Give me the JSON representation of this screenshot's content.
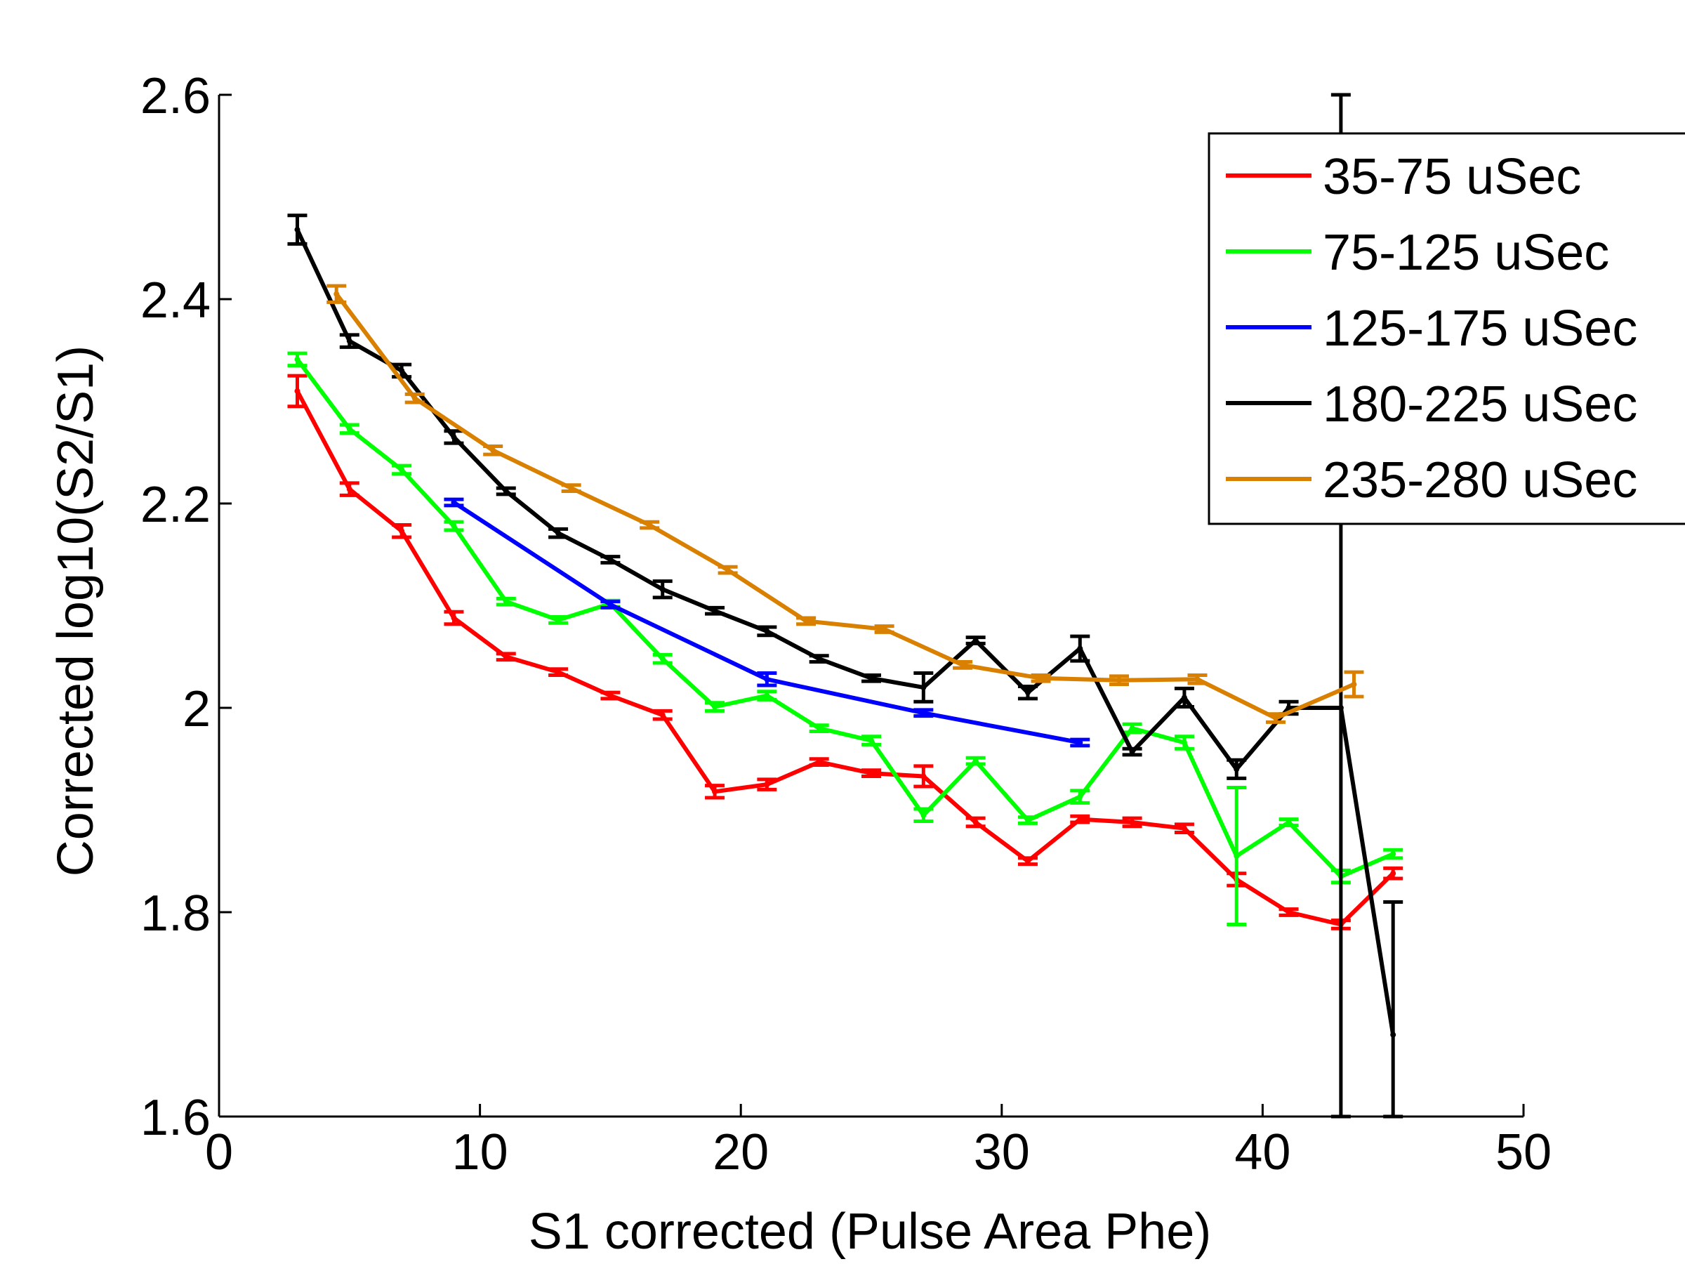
{
  "chart_data": {
    "type": "line",
    "title": "",
    "xlabel": "S1 corrected (Pulse Area Phe)",
    "ylabel": "Corrected log10(S2/S1)",
    "xlim": [
      0,
      50
    ],
    "ylim": [
      1.6,
      2.6
    ],
    "xticks": [
      0,
      10,
      20,
      30,
      40,
      50
    ],
    "yticks": [
      1.6,
      1.8,
      2.0,
      2.2,
      2.4,
      2.6
    ],
    "xtick_labels": [
      "0",
      "10",
      "20",
      "30",
      "40",
      "50"
    ],
    "ytick_labels": [
      "1.6",
      "1.8",
      "2",
      "2.2",
      "2.4",
      "2.6"
    ],
    "grid": false,
    "legend_position": "top-right",
    "series": [
      {
        "name": "35-75 uSec",
        "color": "#ff0000",
        "x": [
          3,
          5,
          7,
          9,
          11,
          13,
          15,
          17,
          19,
          21,
          23,
          25,
          27,
          29,
          31,
          33,
          35,
          37,
          39,
          41,
          43,
          45
        ],
        "y": [
          2.31,
          2.214,
          2.173,
          2.088,
          2.05,
          2.035,
          2.012,
          1.993,
          1.918,
          1.925,
          1.947,
          1.936,
          1.933,
          1.888,
          1.85,
          1.891,
          1.888,
          1.882,
          1.832,
          1.8,
          1.788,
          1.838
        ],
        "err": [
          0.015,
          0.006,
          0.006,
          0.006,
          0.003,
          0.003,
          0.003,
          0.004,
          0.006,
          0.005,
          0.003,
          0.003,
          0.01,
          0.004,
          0.003,
          0.003,
          0.004,
          0.004,
          0.006,
          0.003,
          0.004,
          0.005
        ]
      },
      {
        "name": "75-125 uSec",
        "color": "#00ff00",
        "x": [
          3,
          5,
          7,
          9,
          11,
          13,
          15,
          17,
          19,
          21,
          23,
          25,
          27,
          29,
          31,
          33,
          35,
          37,
          39,
          41,
          43,
          45
        ],
        "y": [
          2.341,
          2.273,
          2.233,
          2.178,
          2.104,
          2.086,
          2.102,
          2.048,
          2.001,
          2.012,
          1.98,
          1.968,
          1.895,
          1.948,
          1.89,
          1.913,
          1.98,
          1.966,
          1.855,
          1.888,
          1.835,
          1.857
        ],
        "err": [
          0.006,
          0.004,
          0.004,
          0.004,
          0.003,
          0.003,
          0.003,
          0.004,
          0.004,
          0.004,
          0.003,
          0.004,
          0.006,
          0.003,
          0.003,
          0.006,
          0.004,
          0.006,
          0.067,
          0.003,
          0.006,
          0.004
        ]
      },
      {
        "name": "125-175 uSec",
        "color": "#0000ff",
        "x": [
          9,
          15,
          21,
          27,
          33
        ],
        "y": [
          2.201,
          2.101,
          2.028,
          1.995,
          1.966
        ],
        "err": [
          0.003,
          0.003,
          0.006,
          0.003,
          0.003
        ]
      },
      {
        "name": "180-225 uSec",
        "color": "#000000",
        "x": [
          3,
          5,
          7,
          9,
          11,
          13,
          15,
          17,
          19,
          21,
          23,
          25,
          27,
          29,
          31,
          33,
          35,
          37,
          39,
          41,
          43,
          45
        ],
        "y": [
          2.468,
          2.359,
          2.33,
          2.265,
          2.212,
          2.171,
          2.145,
          2.116,
          2.095,
          2.075,
          2.048,
          2.029,
          2.02,
          2.066,
          2.015,
          2.058,
          1.957,
          2.01,
          1.94,
          2.0,
          2.0,
          1.68
        ],
        "err": [
          0.014,
          0.006,
          0.006,
          0.006,
          0.003,
          0.004,
          0.003,
          0.008,
          0.003,
          0.004,
          0.003,
          0.003,
          0.014,
          0.003,
          0.006,
          0.012,
          0.003,
          0.009,
          0.009,
          0.006,
          0.6,
          0.13
        ]
      },
      {
        "name": "235-280 uSec",
        "color": "#d98000",
        "x": [
          4.5,
          7.5,
          10.5,
          13.5,
          16.5,
          19.5,
          22.5,
          25.5,
          28.5,
          31.5,
          34.5,
          37.5,
          40.5,
          43.5
        ],
        "y": [
          2.405,
          2.303,
          2.252,
          2.215,
          2.179,
          2.135,
          2.085,
          2.077,
          2.042,
          2.029,
          2.027,
          2.028,
          1.99,
          2.023
        ],
        "err": [
          0.008,
          0.004,
          0.004,
          0.003,
          0.003,
          0.003,
          0.003,
          0.003,
          0.003,
          0.003,
          0.004,
          0.004,
          0.004,
          0.012
        ]
      }
    ]
  }
}
